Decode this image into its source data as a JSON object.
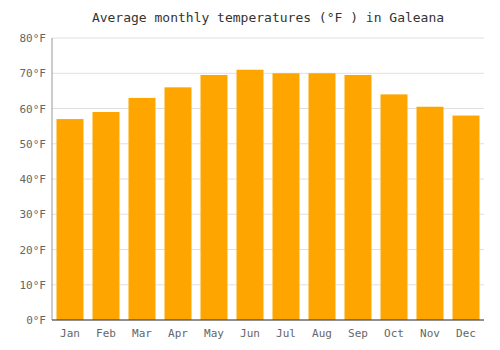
{
  "chart_data": {
    "type": "bar",
    "title": "Average monthly temperatures (°F ) in Galeana",
    "categories": [
      "Jan",
      "Feb",
      "Mar",
      "Apr",
      "May",
      "Jun",
      "Jul",
      "Aug",
      "Sep",
      "Oct",
      "Nov",
      "Dec"
    ],
    "values": [
      57,
      59,
      63,
      66,
      69.5,
      71,
      70,
      70,
      69.5,
      64,
      60.5,
      58
    ],
    "color": "#FFA500",
    "ylim": [
      0,
      80
    ],
    "yticks": [
      {
        "value": 0,
        "label": "0°F"
      },
      {
        "value": 10,
        "label": "10°F"
      },
      {
        "value": 20,
        "label": "20°F"
      },
      {
        "value": 30,
        "label": "30°F"
      },
      {
        "value": 40,
        "label": "40°F"
      },
      {
        "value": 50,
        "label": "50°F"
      },
      {
        "value": 60,
        "label": "60°F"
      },
      {
        "value": 70,
        "label": "70°F"
      },
      {
        "value": 80,
        "label": "80°F"
      }
    ],
    "grid": true
  }
}
